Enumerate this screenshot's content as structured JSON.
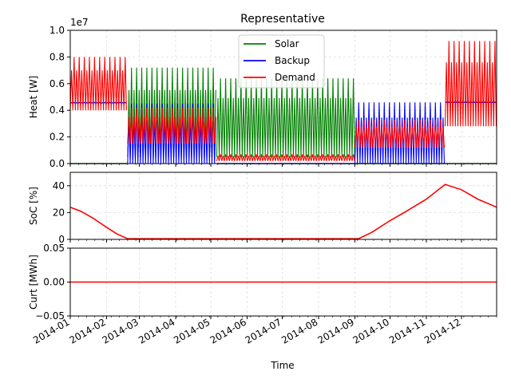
{
  "chart_data": [
    {
      "type": "line",
      "title": "Representative",
      "ylabel": "Heat [W]",
      "offset_text": "1e7",
      "ylim": [
        0,
        10000000
      ],
      "yticks": [
        0,
        2000000,
        4000000,
        6000000,
        8000000,
        10000000
      ],
      "ytick_labels": [
        "0.0",
        "0.2",
        "0.4",
        "0.6",
        "0.8",
        "1.0"
      ],
      "legend": [
        "Solar",
        "Backup",
        "Demand"
      ],
      "legend_position": "top-center",
      "grid": true,
      "series": [
        {
          "name": "Solar",
          "color": "#008000",
          "segments": [
            {
              "start": "2014-01-01",
              "end": "2014-02-19",
              "min": 0,
              "max": 0
            },
            {
              "start": "2014-02-19",
              "end": "2014-05-06",
              "min": 500000,
              "max": 7200000
            },
            {
              "start": "2014-05-06",
              "end": "2014-09-01",
              "min": 500000,
              "max": 6400000
            },
            {
              "start": "2014-09-01",
              "end": "2014-12-31",
              "min": 0,
              "max": 0
            }
          ]
        },
        {
          "name": "Backup",
          "color": "#0000ff",
          "segments": [
            {
              "start": "2014-01-01",
              "end": "2014-02-19",
              "min": 4500000,
              "max": 4600000
            },
            {
              "start": "2014-02-19",
              "end": "2014-05-06",
              "min": 0,
              "max": 4500000
            },
            {
              "start": "2014-05-06",
              "end": "2014-09-01",
              "min": 0,
              "max": 0
            },
            {
              "start": "2014-09-01",
              "end": "2014-11-17",
              "min": 0,
              "max": 4600000
            },
            {
              "start": "2014-11-17",
              "end": "2014-12-31",
              "min": 4600000,
              "max": 4600000
            }
          ]
        },
        {
          "name": "Demand",
          "color": "#ff0000",
          "segments": [
            {
              "start": "2014-01-01",
              "end": "2014-02-19",
              "min": 4000000,
              "max": 8000000
            },
            {
              "start": "2014-02-19",
              "end": "2014-05-06",
              "min": 1500000,
              "max": 4200000
            },
            {
              "start": "2014-05-06",
              "end": "2014-09-01",
              "min": 200000,
              "max": 700000
            },
            {
              "start": "2014-09-01",
              "end": "2014-11-17",
              "min": 1200000,
              "max": 3300000
            },
            {
              "start": "2014-11-17",
              "end": "2014-12-31",
              "min": 2800000,
              "max": 9200000
            }
          ]
        }
      ]
    },
    {
      "type": "line",
      "ylabel": "SoC [%]",
      "ylim": [
        0,
        50
      ],
      "yticks": [
        0,
        20,
        40
      ],
      "ytick_labels": [
        "0",
        "20",
        "40"
      ],
      "grid": true,
      "series": [
        {
          "name": "",
          "color": "#ff0000",
          "points": [
            [
              "2014-01-01",
              24
            ],
            [
              "2014-01-10",
              21
            ],
            [
              "2014-01-20",
              16
            ],
            [
              "2014-02-01",
              9
            ],
            [
              "2014-02-10",
              4
            ],
            [
              "2014-02-19",
              0.5
            ],
            [
              "2014-04-01",
              0.5
            ],
            [
              "2014-06-01",
              0.5
            ],
            [
              "2014-08-01",
              0.5
            ],
            [
              "2014-09-04",
              0.5
            ],
            [
              "2014-09-15",
              5
            ],
            [
              "2014-10-01",
              14
            ],
            [
              "2014-10-15",
              21
            ],
            [
              "2014-11-01",
              30
            ],
            [
              "2014-11-17",
              41
            ],
            [
              "2014-12-01",
              37
            ],
            [
              "2014-12-15",
              30
            ],
            [
              "2014-12-31",
              24
            ]
          ]
        }
      ]
    },
    {
      "type": "line",
      "ylabel": "Curt [MWh]",
      "xlabel": "Time",
      "ylim": [
        -0.05,
        0.05
      ],
      "yticks": [
        -0.05,
        0,
        0.05
      ],
      "ytick_labels": [
        "−0.05",
        "0.00",
        "0.05"
      ],
      "xtick_labels": [
        "2014-01",
        "2014-02",
        "2014-03",
        "2014-04",
        "2014-05",
        "2014-06",
        "2014-07",
        "2014-08",
        "2014-09",
        "2014-10",
        "2014-11",
        "2014-12"
      ],
      "xlim": [
        "2014-01-01",
        "2014-12-31"
      ],
      "grid": true,
      "series": [
        {
          "name": "",
          "color": "#ff0000",
          "points": [
            [
              "2014-01-01",
              0
            ],
            [
              "2014-12-31",
              0
            ]
          ]
        }
      ]
    }
  ]
}
